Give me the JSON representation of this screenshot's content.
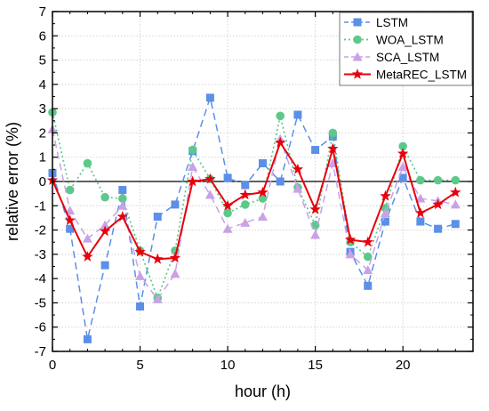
{
  "chart_data": {
    "type": "line",
    "xlabel": "hour (h)",
    "ylabel": "relative error (%)",
    "xlim": [
      0,
      24
    ],
    "ylim": [
      -7,
      7
    ],
    "x_ticks": [
      0,
      5,
      10,
      15,
      20
    ],
    "y_ticks": [
      -7,
      -6,
      -5,
      -4,
      -3,
      -2,
      -1,
      0,
      1,
      2,
      3,
      4,
      5,
      6,
      7
    ],
    "grid": true,
    "zero_line": true,
    "legend_position": "top-right",
    "x": [
      0,
      1,
      2,
      3,
      4,
      5,
      6,
      7,
      8,
      9,
      10,
      11,
      12,
      13,
      14,
      15,
      16,
      17,
      18,
      19,
      20,
      21,
      22,
      23
    ],
    "series": [
      {
        "name": "LSTM",
        "color": "#5b8fe8",
        "marker": "square",
        "line_style": "dashed",
        "values": [
          0.35,
          -1.95,
          -6.5,
          -3.45,
          -0.35,
          -5.15,
          -1.45,
          -0.95,
          1.25,
          3.45,
          0.15,
          -0.15,
          0.75,
          0.0,
          2.75,
          1.3,
          1.85,
          -2.9,
          -4.3,
          -1.65,
          0.15,
          -1.65,
          -1.95,
          -1.75
        ]
      },
      {
        "name": "WOA_LSTM",
        "color": "#5cc98a",
        "marker": "circle",
        "line_style": "dotted",
        "values": [
          2.85,
          -0.35,
          0.75,
          -0.65,
          -0.7,
          -2.85,
          -4.8,
          -2.85,
          1.3,
          0.1,
          -1.3,
          -0.95,
          -0.7,
          2.7,
          -0.25,
          -1.8,
          2.0,
          -2.5,
          -3.1,
          -1.1,
          1.45,
          0.05,
          0.05,
          0.05
        ]
      },
      {
        "name": "SCA_LSTM",
        "color": "#c9a2e6",
        "marker": "triangle",
        "line_style": "dashed",
        "values": [
          2.15,
          -1.2,
          -2.35,
          -1.8,
          -1.0,
          -3.9,
          -4.85,
          -3.8,
          0.6,
          -0.55,
          -1.95,
          -1.7,
          -1.45,
          1.75,
          -0.3,
          -2.2,
          0.75,
          -3.0,
          -3.65,
          -1.3,
          0.6,
          -0.7,
          -0.8,
          -0.95
        ]
      },
      {
        "name": "MetaREC_LSTM",
        "color": "#e8000b",
        "marker": "star",
        "line_style": "solid",
        "values": [
          0.05,
          -1.6,
          -3.1,
          -2.05,
          -1.45,
          -2.9,
          -3.2,
          -3.15,
          0.0,
          0.1,
          -1.0,
          -0.55,
          -0.45,
          1.6,
          0.5,
          -1.15,
          1.35,
          -2.4,
          -2.5,
          -0.6,
          1.15,
          -1.3,
          -0.95,
          -0.45
        ]
      }
    ]
  }
}
